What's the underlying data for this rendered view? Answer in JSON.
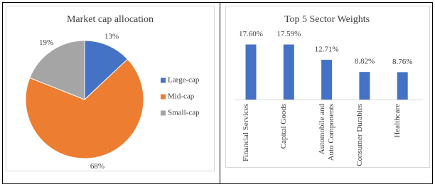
{
  "chart_data": [
    {
      "type": "pie",
      "title": "Market cap allocation",
      "categories": [
        "Large-cap",
        "Mid-cap",
        "Small-cap"
      ],
      "values": [
        13,
        68,
        19
      ],
      "value_labels": [
        "13%",
        "68%",
        "19%"
      ],
      "colors": [
        "#4472c4",
        "#ed7d31",
        "#a5a5a5"
      ],
      "legend": "right"
    },
    {
      "type": "bar",
      "title": "Top 5 Sector Weights",
      "categories": [
        "Financial Services",
        "Capital Goods",
        "Automobile and Auto Components",
        "Consumer Durables",
        "Healthcare"
      ],
      "values": [
        17.6,
        17.59,
        12.71,
        8.82,
        8.76
      ],
      "value_labels": [
        "17.60%",
        "17.59%",
        "12.71%",
        "8.82%",
        "8.76%"
      ],
      "color": "#4472c4"
    }
  ]
}
